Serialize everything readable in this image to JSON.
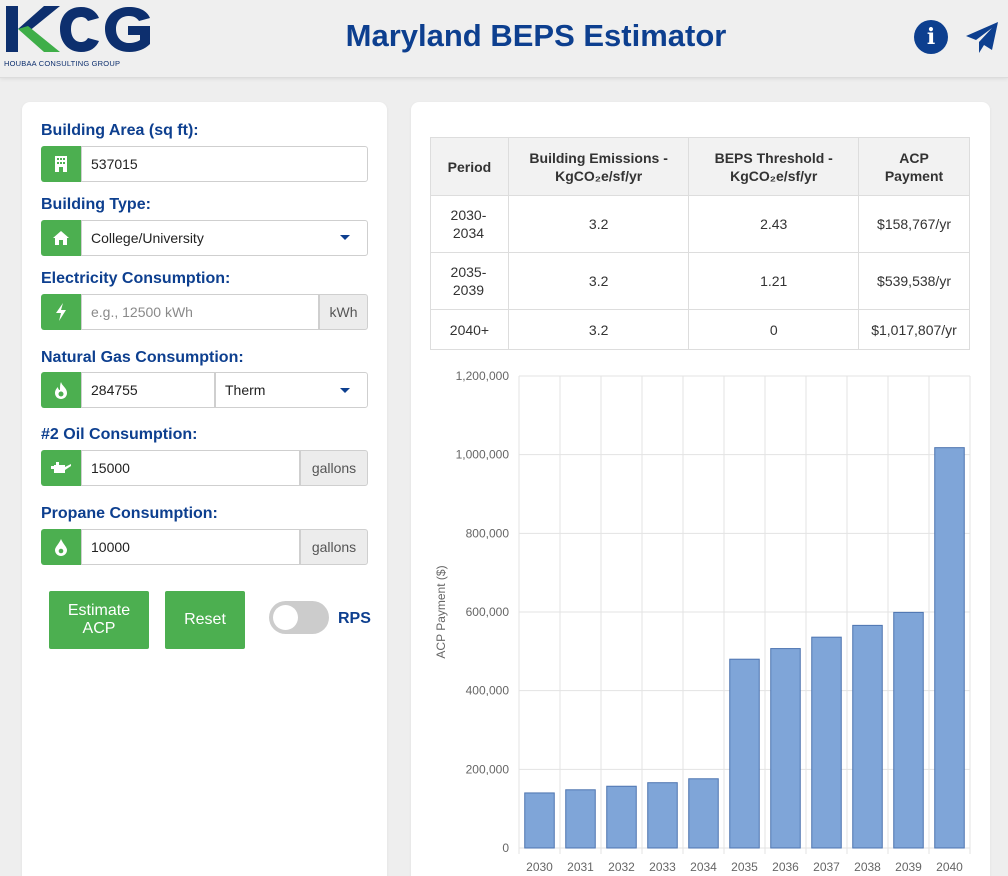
{
  "header": {
    "logo_text": "KCG",
    "logo_subtitle": "HOUBAA CONSULTING GROUP",
    "title": "Maryland BEPS Estimator",
    "info_icon": "info-icon",
    "send_icon": "paper-plane-icon"
  },
  "form": {
    "building_area": {
      "label": "Building Area (sq ft):",
      "value": "537015",
      "icon": "building-icon"
    },
    "building_type": {
      "label": "Building Type:",
      "value": "College/University",
      "icon": "home-icon"
    },
    "electricity": {
      "label": "Electricity Consumption:",
      "value": "",
      "placeholder": "e.g., 12500 kWh",
      "unit": "kWh",
      "icon": "bolt-icon"
    },
    "natural_gas": {
      "label": "Natural Gas Consumption:",
      "value": "284755",
      "unit_selected": "Therm",
      "icon": "flame-icon"
    },
    "oil": {
      "label": "#2 Oil Consumption:",
      "value": "15000",
      "unit": "gallons",
      "icon": "oil-can-icon"
    },
    "propane": {
      "label": "Propane Consumption:",
      "value": "10000",
      "unit": "gallons",
      "icon": "droplet-icon"
    },
    "estimate_button": "Estimate ACP",
    "reset_button": "Reset",
    "rps_label": "RPS",
    "rps_enabled": false
  },
  "results_table": {
    "headers": [
      "Period",
      "Building Emissions - KgCO₂e/sf/yr",
      "BEPS Threshold - KgCO₂e/sf/yr",
      "ACP Payment"
    ],
    "rows": [
      [
        "2030-2034",
        "3.2",
        "2.43",
        "$158,767/yr"
      ],
      [
        "2035-2039",
        "3.2",
        "1.21",
        "$539,538/yr"
      ],
      [
        "2040+",
        "3.2",
        "0",
        "$1,017,807/yr"
      ]
    ]
  },
  "colors": {
    "brand_blue": "#0d3f8f",
    "accent_green": "#4caf50",
    "bar_fill": "#7fa5d8",
    "bar_stroke": "#4d74b0"
  },
  "chart_data": {
    "type": "bar",
    "ylabel": "ACP Payment ($)",
    "ylim": [
      0,
      1200000
    ],
    "yticks": [
      "0",
      "200,000",
      "400,000",
      "600,000",
      "800,000",
      "1,000,000",
      "1,200,000"
    ],
    "categories": [
      "2030",
      "2031",
      "2032",
      "2033",
      "2034",
      "2035",
      "2036",
      "2037",
      "2038",
      "2039",
      "2040"
    ],
    "values": [
      140000,
      148000,
      157000,
      166000,
      176000,
      480000,
      507000,
      536000,
      566000,
      599000,
      1017807
    ],
    "grid": true
  }
}
